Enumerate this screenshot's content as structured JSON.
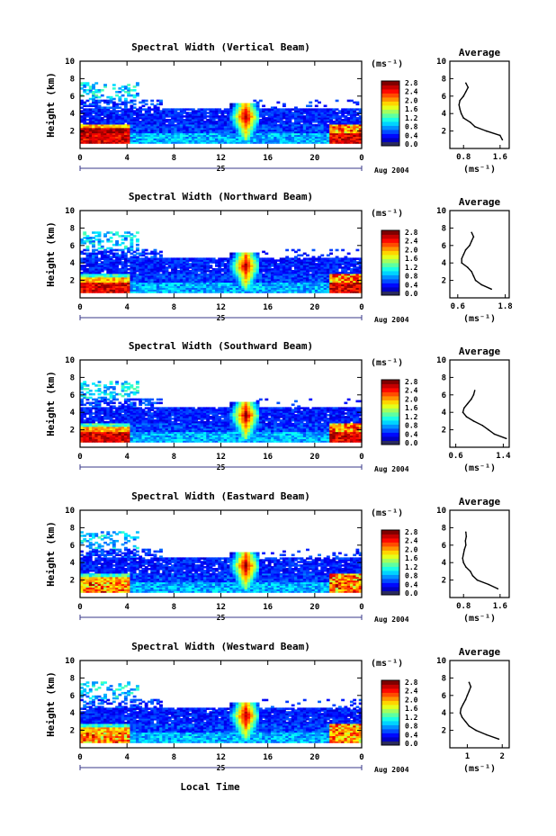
{
  "figure": {
    "date_label": "Aug 2004",
    "day_label": "25",
    "xlabel_bottom": "Local Time",
    "cbar_units": "(ms⁻¹)",
    "avg_title": "Average",
    "avg_xunits": "(ms⁻¹)"
  },
  "chart_data": [
    {
      "type": "heatmap",
      "title": "Spectral Width (Vertical Beam)",
      "ylabel": "Height (km)",
      "xlim": [
        0,
        24
      ],
      "ylim": [
        0,
        10
      ],
      "xticks": [
        "0",
        "4",
        "8",
        "12",
        "16",
        "20",
        "0"
      ],
      "yticks": [
        "2",
        "4",
        "6",
        "8",
        "10"
      ],
      "colorbar": {
        "range": [
          0,
          3.0
        ],
        "ticks": [
          "0.0",
          "0.4",
          "0.8",
          "1.2",
          "1.6",
          "2.0",
          "2.4",
          "2.8"
        ]
      },
      "average_profile": {
        "title": "Average",
        "xlabel": "(ms⁻¹)",
        "ylim": [
          0,
          10
        ],
        "xlim": [
          0.5,
          1.8
        ],
        "xticks": [
          "0.8",
          "1.6"
        ],
        "yticks": [
          "2",
          "4",
          "6",
          "8",
          "10"
        ],
        "height": [
          1.0,
          1.5,
          2.0,
          2.5,
          3.0,
          3.5,
          4.0,
          4.5,
          5.0,
          5.5,
          6.0,
          6.5,
          7.0,
          7.5
        ],
        "value": [
          1.65,
          1.6,
          1.3,
          1.05,
          0.95,
          0.8,
          0.75,
          0.72,
          0.7,
          0.72,
          0.8,
          0.85,
          0.9,
          0.85
        ]
      }
    },
    {
      "type": "heatmap",
      "title": "Spectral Width (Northward Beam)",
      "ylabel": "Height (km)",
      "xlim": [
        0,
        24
      ],
      "ylim": [
        0,
        10
      ],
      "xticks": [
        "0",
        "4",
        "8",
        "12",
        "16",
        "20",
        "0"
      ],
      "yticks": [
        "2",
        "4",
        "6",
        "8",
        "10"
      ],
      "colorbar": {
        "range": [
          0,
          3.0
        ],
        "ticks": [
          "0.0",
          "0.4",
          "0.8",
          "1.2",
          "1.6",
          "2.0",
          "2.4",
          "2.8"
        ]
      },
      "average_profile": {
        "title": "Average",
        "xlabel": "(ms⁻¹)",
        "ylim": [
          0,
          10
        ],
        "xlim": [
          0.4,
          1.9
        ],
        "xticks": [
          "0.6",
          "1.8"
        ],
        "yticks": [
          "2",
          "4",
          "6",
          "8",
          "10"
        ],
        "height": [
          1.0,
          1.5,
          2.0,
          2.5,
          3.0,
          3.5,
          4.0,
          4.5,
          5.0,
          5.5,
          6.0,
          6.5,
          7.0,
          7.5
        ],
        "value": [
          1.45,
          1.2,
          1.05,
          1.0,
          0.95,
          0.85,
          0.7,
          0.7,
          0.75,
          0.8,
          0.9,
          0.95,
          1.0,
          0.95
        ]
      }
    },
    {
      "type": "heatmap",
      "title": "Spectral Width (Southward Beam)",
      "ylabel": "Height (km)",
      "xlim": [
        0,
        24
      ],
      "ylim": [
        0,
        10
      ],
      "xticks": [
        "0",
        "4",
        "8",
        "12",
        "16",
        "20",
        "0"
      ],
      "yticks": [
        "2",
        "4",
        "6",
        "8",
        "10"
      ],
      "colorbar": {
        "range": [
          0,
          3.0
        ],
        "ticks": [
          "0.0",
          "0.4",
          "0.8",
          "1.2",
          "1.6",
          "2.0",
          "2.4",
          "2.8"
        ]
      },
      "average_profile": {
        "title": "Average",
        "xlabel": "(ms⁻¹)",
        "ylim": [
          0,
          10
        ],
        "xlim": [
          0.5,
          1.5
        ],
        "xticks": [
          "0.6",
          "1.4"
        ],
        "yticks": [
          "2",
          "4",
          "6",
          "8",
          "10"
        ],
        "height": [
          1.0,
          1.5,
          2.0,
          2.5,
          3.0,
          3.5,
          4.0,
          4.5,
          5.0,
          5.5,
          6.0,
          6.5
        ],
        "value": [
          1.45,
          1.25,
          1.15,
          1.05,
          0.9,
          0.78,
          0.72,
          0.74,
          0.8,
          0.86,
          0.9,
          0.92
        ]
      }
    },
    {
      "type": "heatmap",
      "title": "Spectral Width (Eastward Beam)",
      "ylabel": "Height (km)",
      "xlim": [
        0,
        24
      ],
      "ylim": [
        0,
        10
      ],
      "xticks": [
        "0",
        "4",
        "8",
        "12",
        "16",
        "20",
        "0"
      ],
      "yticks": [
        "2",
        "4",
        "6",
        "8",
        "10"
      ],
      "colorbar": {
        "range": [
          0,
          3.0
        ],
        "ticks": [
          "0.0",
          "0.4",
          "0.8",
          "1.2",
          "1.6",
          "2.0",
          "2.4",
          "2.8"
        ]
      },
      "average_profile": {
        "title": "Average",
        "xlabel": "(ms⁻¹)",
        "ylim": [
          0,
          10
        ],
        "xlim": [
          0.5,
          1.8
        ],
        "xticks": [
          "0.8",
          "1.6"
        ],
        "yticks": [
          "2",
          "4",
          "6",
          "8",
          "10"
        ],
        "height": [
          1.0,
          1.5,
          2.0,
          2.5,
          3.0,
          3.5,
          4.0,
          4.5,
          5.0,
          5.5,
          6.0,
          6.5,
          7.0,
          7.5
        ],
        "value": [
          1.55,
          1.35,
          1.1,
          1.0,
          0.95,
          0.85,
          0.8,
          0.78,
          0.8,
          0.82,
          0.85,
          0.84,
          0.86,
          0.85
        ]
      }
    },
    {
      "type": "heatmap",
      "title": "Spectral Width (Westward Beam)",
      "ylabel": "Height (km)",
      "xlim": [
        0,
        24
      ],
      "ylim": [
        0,
        10
      ],
      "xticks": [
        "0",
        "4",
        "8",
        "12",
        "16",
        "20",
        "0"
      ],
      "yticks": [
        "2",
        "4",
        "6",
        "8",
        "10"
      ],
      "colorbar": {
        "range": [
          0,
          3.0
        ],
        "ticks": [
          "0.0",
          "0.4",
          "0.8",
          "1.2",
          "1.6",
          "2.0",
          "2.4",
          "2.8"
        ]
      },
      "average_profile": {
        "title": "Average",
        "xlabel": "(ms⁻¹)",
        "ylim": [
          0,
          10
        ],
        "xlim": [
          0.5,
          2.2
        ],
        "xticks": [
          "1",
          "2"
        ],
        "yticks": [
          "2",
          "4",
          "6",
          "8",
          "10"
        ],
        "height": [
          1.0,
          1.5,
          2.0,
          2.5,
          3.0,
          3.5,
          4.0,
          4.5,
          5.0,
          5.5,
          6.0,
          6.5,
          7.0,
          7.5
        ],
        "value": [
          1.9,
          1.55,
          1.25,
          1.05,
          0.95,
          0.85,
          0.8,
          0.82,
          0.88,
          0.95,
          1.0,
          1.05,
          1.1,
          1.05
        ]
      }
    }
  ]
}
